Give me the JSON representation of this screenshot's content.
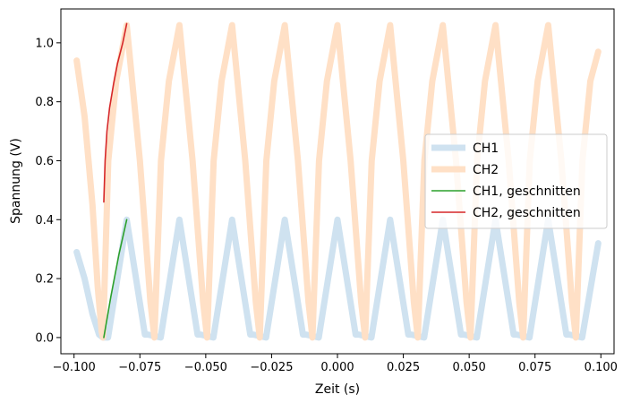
{
  "chart_data": {
    "type": "line",
    "xlabel": "Zeit (s)",
    "ylabel": "Spannung (V)",
    "xlim": [
      -0.105,
      0.105
    ],
    "ylim": [
      -0.055,
      1.115
    ],
    "xticks": [
      -0.1,
      -0.075,
      -0.05,
      -0.025,
      0.0,
      0.025,
      0.05,
      0.075,
      0.1
    ],
    "xtick_labels": [
      "−0.100",
      "−0.075",
      "−0.050",
      "−0.025",
      "0.000",
      "0.025",
      "0.050",
      "0.075",
      "0.100"
    ],
    "yticks": [
      0.0,
      0.2,
      0.4,
      0.6,
      0.8,
      1.0
    ],
    "ytick_labels": [
      "0.0",
      "0.2",
      "0.4",
      "0.6",
      "0.8",
      "1.0"
    ],
    "grid": false,
    "legend_position": "center-right",
    "series": [
      {
        "name": "CH1",
        "color": "#cfe2f0",
        "style": "thick",
        "x": [
          -0.099,
          -0.096,
          -0.093,
          -0.0905,
          -0.089,
          -0.0871,
          -0.08,
          -0.0731,
          -0.0719,
          -0.0671,
          -0.06,
          -0.0531,
          -0.0519,
          -0.0471,
          -0.04,
          -0.0331,
          -0.0319,
          -0.0271,
          -0.02,
          -0.0131,
          -0.0119,
          -0.0071,
          0.0,
          0.0069,
          0.0081,
          0.0129,
          0.02,
          0.0269,
          0.0281,
          0.0329,
          0.04,
          0.0469,
          0.0481,
          0.0529,
          0.06,
          0.0669,
          0.0681,
          0.0729,
          0.08,
          0.0869,
          0.0881,
          0.0929,
          0.099
        ],
        "y": [
          0.29,
          0.2,
          0.08,
          0.01,
          0.0,
          0.0,
          0.4,
          0.01,
          0.01,
          0.0,
          0.4,
          0.01,
          0.01,
          0.0,
          0.4,
          0.01,
          0.01,
          0.0,
          0.4,
          0.01,
          0.01,
          0.0,
          0.4,
          0.01,
          0.01,
          0.0,
          0.4,
          0.01,
          0.01,
          0.0,
          0.4,
          0.01,
          0.01,
          0.0,
          0.4,
          0.01,
          0.01,
          0.0,
          0.4,
          0.01,
          0.01,
          0.0,
          0.32
        ]
      },
      {
        "name": "CH2",
        "color": "#ffe0c6",
        "style": "thick",
        "x": [
          -0.099,
          -0.096,
          -0.093,
          -0.091,
          -0.0895,
          -0.089,
          -0.087,
          -0.084,
          -0.08,
          -0.075,
          -0.071,
          -0.0695,
          -0.067,
          -0.064,
          -0.06,
          -0.055,
          -0.051,
          -0.0495,
          -0.047,
          -0.044,
          -0.04,
          -0.035,
          -0.031,
          -0.0295,
          -0.027,
          -0.024,
          -0.02,
          -0.015,
          -0.011,
          -0.0095,
          -0.007,
          -0.004,
          0.0,
          0.005,
          0.009,
          0.0105,
          0.013,
          0.016,
          0.02,
          0.025,
          0.029,
          0.0305,
          0.033,
          0.036,
          0.04,
          0.045,
          0.049,
          0.0505,
          0.053,
          0.056,
          0.06,
          0.065,
          0.069,
          0.0705,
          0.073,
          0.076,
          0.08,
          0.085,
          0.089,
          0.0905,
          0.093,
          0.096,
          0.099
        ],
        "y": [
          0.94,
          0.75,
          0.45,
          0.17,
          0.02,
          0.0,
          0.6,
          0.87,
          1.06,
          0.6,
          0.12,
          0.0,
          0.6,
          0.87,
          1.06,
          0.6,
          0.12,
          0.0,
          0.6,
          0.87,
          1.06,
          0.6,
          0.12,
          0.0,
          0.6,
          0.87,
          1.06,
          0.6,
          0.12,
          0.0,
          0.6,
          0.87,
          1.06,
          0.6,
          0.12,
          0.0,
          0.6,
          0.87,
          1.06,
          0.6,
          0.12,
          0.0,
          0.6,
          0.87,
          1.06,
          0.6,
          0.12,
          0.0,
          0.6,
          0.87,
          1.06,
          0.6,
          0.12,
          0.0,
          0.6,
          0.87,
          1.06,
          0.6,
          0.12,
          0.0,
          0.6,
          0.87,
          0.97
        ]
      },
      {
        "name": "CH1, geschnitten",
        "color": "#2ca02c",
        "style": "thin",
        "x": [
          -0.0887,
          -0.086,
          -0.083,
          -0.08
        ],
        "y": [
          0.0,
          0.14,
          0.28,
          0.4
        ]
      },
      {
        "name": "CH2, geschnitten",
        "color": "#d62728",
        "style": "thin",
        "x": [
          -0.0887,
          -0.0882,
          -0.0875,
          -0.0865,
          -0.085,
          -0.0835,
          -0.0815,
          -0.08
        ],
        "y": [
          0.46,
          0.6,
          0.7,
          0.78,
          0.86,
          0.93,
          1.0,
          1.065
        ]
      }
    ]
  }
}
